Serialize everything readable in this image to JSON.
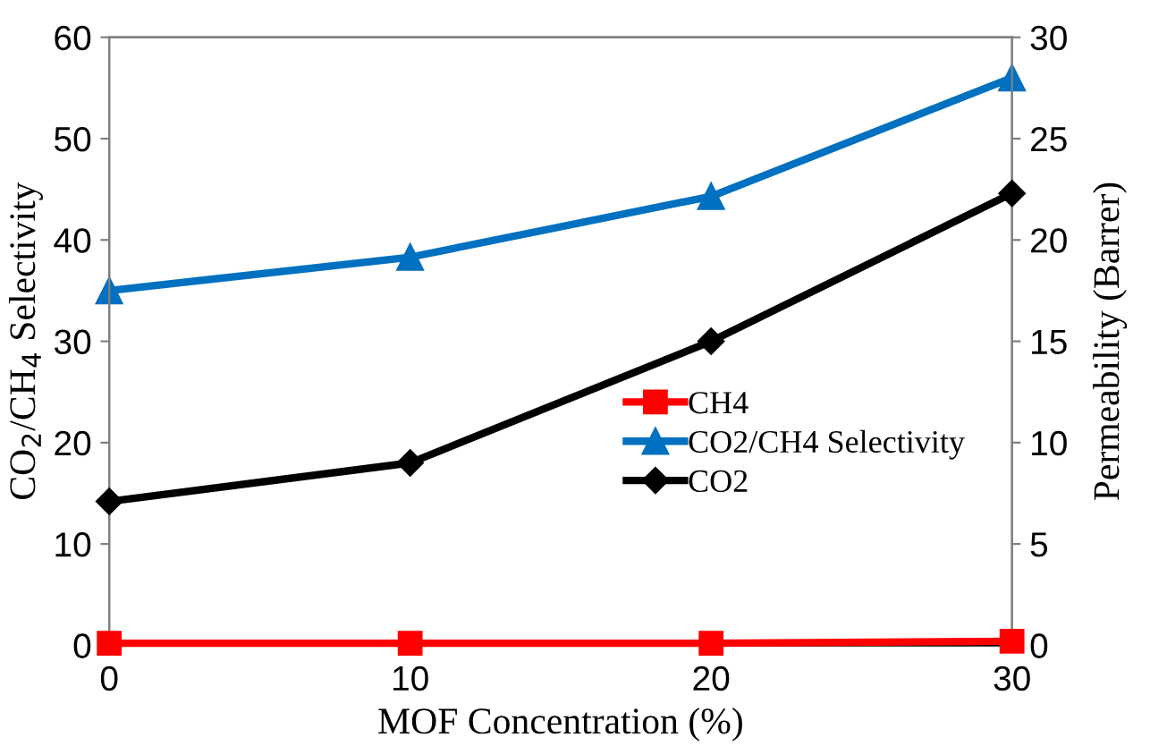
{
  "chart_data": {
    "type": "line",
    "xlabel": "MOF Concentration (%)",
    "ylabel": "CO$_{2}$/CH$_{4}$ Selectivity",
    "y2label": "Permeability (Barrer)",
    "x": [
      0,
      10,
      20,
      30
    ],
    "xlim": [
      0,
      30
    ],
    "xticks": [
      0,
      10,
      20,
      30
    ],
    "ylim": [
      0,
      60
    ],
    "yticks": [
      0,
      10,
      20,
      30,
      40,
      50,
      60
    ],
    "y2lim": [
      0,
      30
    ],
    "y2ticks": [
      0,
      5,
      10,
      15,
      20,
      25,
      30
    ],
    "grid": false,
    "legend": "right",
    "line_style": "solid",
    "series": [
      {
        "name": "CH4",
        "color": "#ff0000",
        "marker": "square",
        "axis": "y2",
        "values": [
          0.1,
          0.1,
          0.1,
          0.2
        ]
      },
      {
        "name": "CO2/CH4 Selectivity",
        "color": "#0070c0",
        "marker": "triangle",
        "values": [
          35,
          38.3,
          44.3,
          56
        ]
      },
      {
        "name": "CO2",
        "color": "#000000",
        "marker": "diamond",
        "axis": "y2",
        "values": [
          7.1,
          9.0,
          15.0,
          22.3
        ]
      }
    ]
  }
}
